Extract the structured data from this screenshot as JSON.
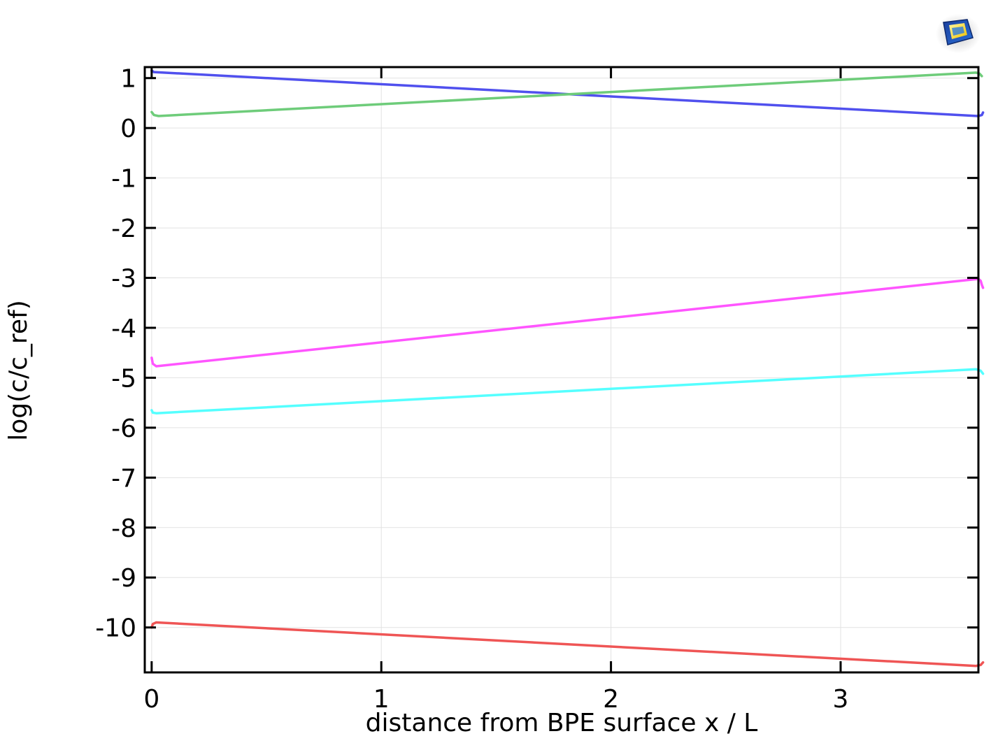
{
  "chart_data": {
    "type": "line",
    "title": "",
    "xlabel": "distance from BPE surface x / L",
    "ylabel": "log(c/c_ref)",
    "xlim": [
      -0.03,
      3.6
    ],
    "ylim": [
      -10.9,
      1.22
    ],
    "xticks": [
      0,
      1,
      2,
      3
    ],
    "yticks": [
      1,
      0,
      -1,
      -2,
      -3,
      -4,
      -5,
      -6,
      -7,
      -8,
      -9,
      -10
    ],
    "xtick_labels": [
      "0",
      "1",
      "2",
      "3"
    ],
    "ytick_labels": [
      "1",
      "0",
      "-1",
      "-2",
      "-3",
      "-4",
      "-5",
      "-6",
      "-7",
      "-8",
      "-9",
      "-10"
    ],
    "grid": true,
    "legend": "none",
    "series": [
      {
        "color": "#5050ee",
        "x": [
          0,
          0.01,
          3.6,
          3.615,
          3.62
        ],
        "y": [
          1.15,
          1.12,
          0.24,
          0.26,
          0.31
        ]
      },
      {
        "color": "#6ecc7a",
        "x": [
          0,
          0.01,
          0.03,
          3.59,
          3.605,
          3.615
        ],
        "y": [
          0.32,
          0.26,
          0.24,
          1.11,
          1.09,
          1.04
        ]
      },
      {
        "color": "#ff55ff",
        "x": [
          0,
          0.005,
          0.02,
          3.6,
          3.61,
          3.615,
          3.62
        ],
        "y": [
          -4.6,
          -4.72,
          -4.77,
          -3.02,
          -3.06,
          -3.14,
          -3.2
        ]
      },
      {
        "color": "#55ffff",
        "x": [
          0,
          0.005,
          0.02,
          3.59,
          3.61,
          3.62
        ],
        "y": [
          -5.65,
          -5.7,
          -5.71,
          -4.83,
          -4.86,
          -4.92
        ]
      },
      {
        "color": "#ef5555",
        "x": [
          0,
          0.005,
          0.02,
          3.59,
          3.61,
          3.62
        ],
        "y": [
          -10.0,
          -9.93,
          -9.9,
          -10.77,
          -10.75,
          -10.7
        ]
      }
    ]
  }
}
